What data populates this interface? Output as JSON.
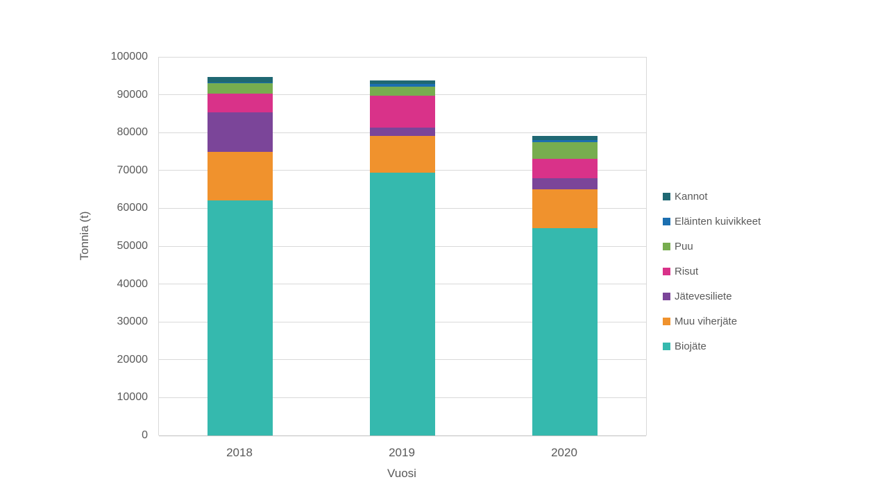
{
  "chart_data": {
    "type": "bar",
    "stacked": true,
    "title": "",
    "xlabel": "Vuosi",
    "ylabel": "Tonnia (t)",
    "categories": [
      "2018",
      "2019",
      "2020"
    ],
    "series": [
      {
        "name": "Kannot",
        "color": "#1f6873",
        "values": [
          1400,
          900,
          1100
        ]
      },
      {
        "name": "Eläinten kuivikkeet",
        "color": "#1c6fb0",
        "values": [
          200,
          600,
          700
        ]
      },
      {
        "name": "Puu",
        "color": "#77ad4f",
        "values": [
          2800,
          2400,
          4300
        ]
      },
      {
        "name": "Risut",
        "color": "#d93289",
        "values": [
          4900,
          8400,
          5200
        ]
      },
      {
        "name": "Jätevesiliete",
        "color": "#7b4599",
        "values": [
          10400,
          2300,
          2800
        ]
      },
      {
        "name": "Muu viherjäte",
        "color": "#f0922d",
        "values": [
          12900,
          9600,
          10400
        ]
      },
      {
        "name": "Biojäte",
        "color": "#35b9ae",
        "values": [
          62100,
          69500,
          54700
        ]
      }
    ],
    "series_note": "series listed in legend order top-to-bottom; stacking order in bars is reversed (Biojäte at bottom, Kannot on top)",
    "totals": [
      94700,
      93700,
      79200
    ],
    "ylim": [
      0,
      100000
    ],
    "ytick_step": 10000,
    "ytick_labels": [
      "0",
      "10000",
      "20000",
      "30000",
      "40000",
      "50000",
      "60000",
      "70000",
      "80000",
      "90000",
      "100000"
    ],
    "grid": true,
    "legend_position": "right",
    "axis_text_color": "#595959",
    "gridline_color": "#d9d9d9"
  }
}
